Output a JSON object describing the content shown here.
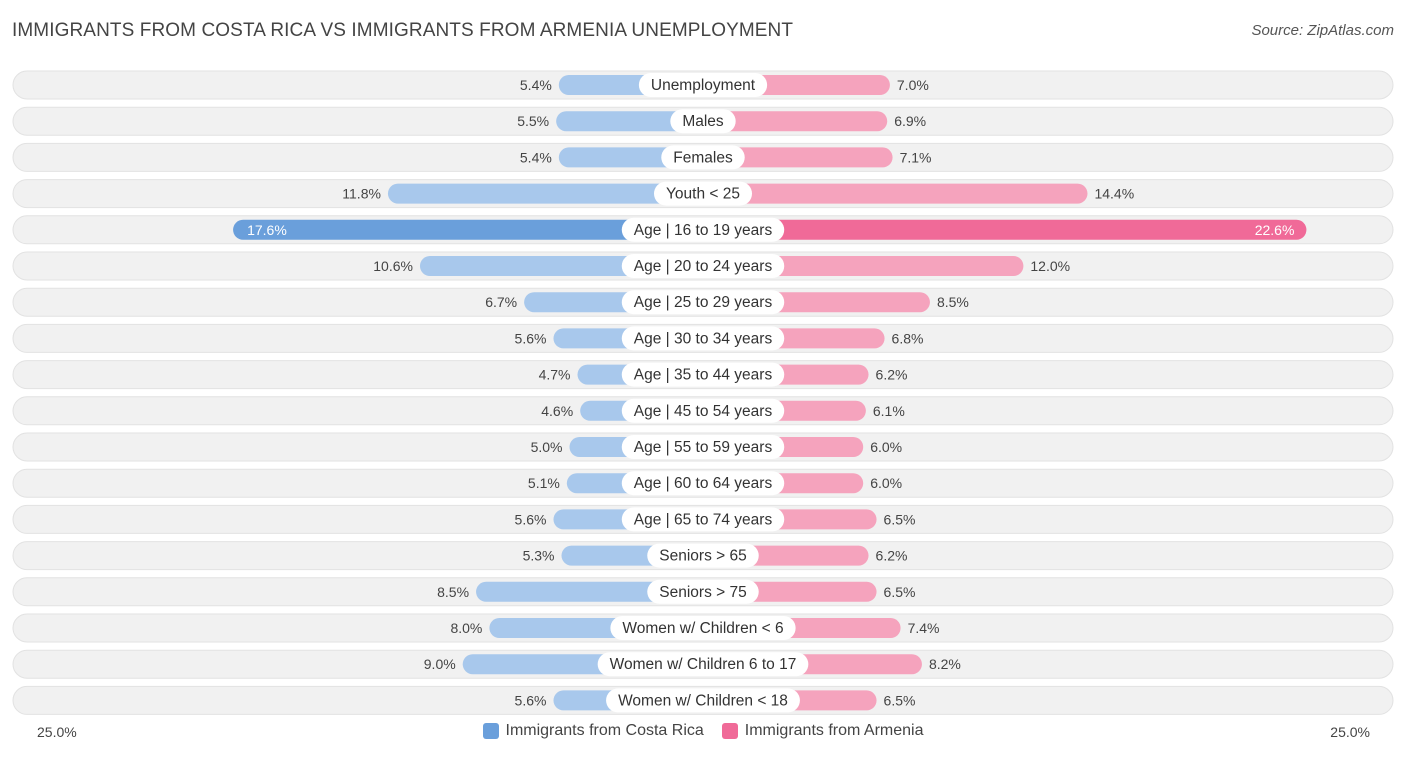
{
  "title": "IMMIGRANTS FROM COSTA RICA VS IMMIGRANTS FROM ARMENIA UNEMPLOYMENT",
  "source": "Source: ZipAtlas.com",
  "colors": {
    "left_light": "#a8c8ec",
    "left_strong": "#6a9fdb",
    "right_light": "#f5a3bd",
    "right_strong": "#f06a98",
    "row_bg": "#f1f1f1"
  },
  "axis": {
    "left_label": "25.0%",
    "right_label": "25.0%"
  },
  "legend": [
    {
      "label": "Immigrants from Costa Rica",
      "color": "#6a9fdb"
    },
    {
      "label": "Immigrants from Armenia",
      "color": "#f06a98"
    }
  ],
  "chart_data": {
    "type": "bar",
    "orientation": "horizontal-diverging",
    "xlim": [
      0,
      25.0
    ],
    "categories": [
      "Unemployment",
      "Males",
      "Females",
      "Youth < 25",
      "Age | 16 to 19 years",
      "Age | 20 to 24 years",
      "Age | 25 to 29 years",
      "Age | 30 to 34 years",
      "Age | 35 to 44 years",
      "Age | 45 to 54 years",
      "Age | 55 to 59 years",
      "Age | 60 to 64 years",
      "Age | 65 to 74 years",
      "Seniors > 65",
      "Seniors > 75",
      "Women w/ Children < 6",
      "Women w/ Children 6 to 17",
      "Women w/ Children < 18"
    ],
    "series": [
      {
        "name": "Immigrants from Costa Rica",
        "values": [
          5.4,
          5.5,
          5.4,
          11.8,
          17.6,
          10.6,
          6.7,
          5.6,
          4.7,
          4.6,
          5.0,
          5.1,
          5.6,
          5.3,
          8.5,
          8.0,
          9.0,
          5.6
        ],
        "labels": [
          "5.4%",
          "5.5%",
          "5.4%",
          "11.8%",
          "17.6%",
          "10.6%",
          "6.7%",
          "5.6%",
          "4.7%",
          "4.6%",
          "5.0%",
          "5.1%",
          "5.6%",
          "5.3%",
          "8.5%",
          "8.0%",
          "9.0%",
          "5.6%"
        ]
      },
      {
        "name": "Immigrants from Armenia",
        "values": [
          7.0,
          6.9,
          7.1,
          14.4,
          22.6,
          12.0,
          8.5,
          6.8,
          6.2,
          6.1,
          6.0,
          6.0,
          6.5,
          6.2,
          6.5,
          7.4,
          8.2,
          6.5
        ],
        "labels": [
          "7.0%",
          "6.9%",
          "7.1%",
          "14.4%",
          "22.6%",
          "12.0%",
          "8.5%",
          "6.8%",
          "6.2%",
          "6.1%",
          "6.0%",
          "6.0%",
          "6.5%",
          "6.2%",
          "6.5%",
          "7.4%",
          "8.2%",
          "6.5%"
        ]
      }
    ]
  }
}
